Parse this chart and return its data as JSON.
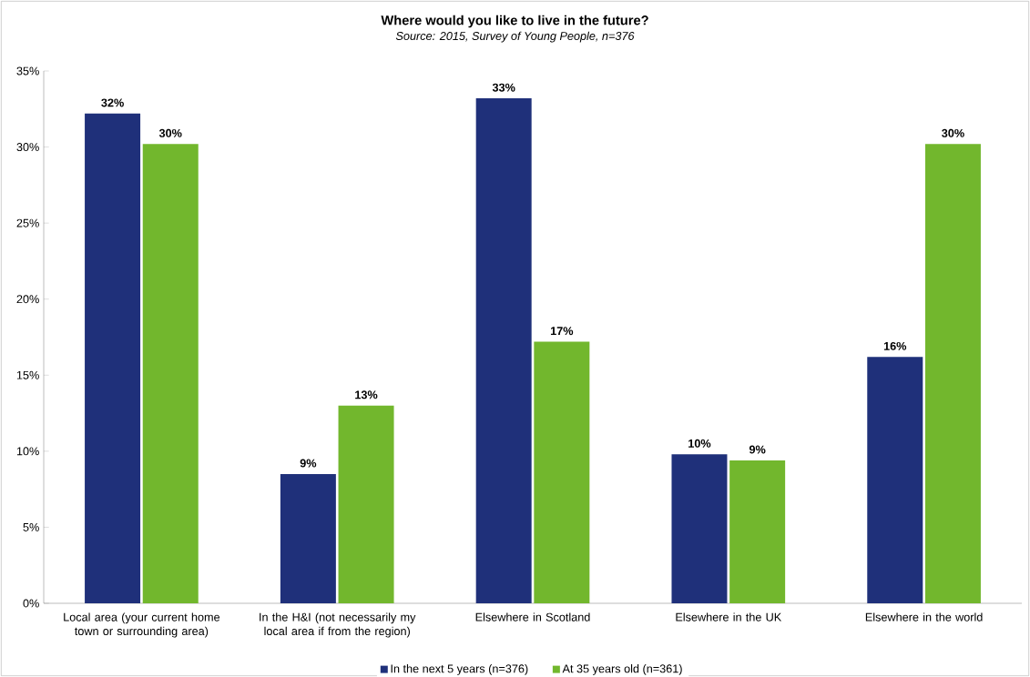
{
  "chart_data": {
    "type": "bar",
    "title": "Where would you like to live in the future?",
    "annotations": [
      "Source: 2015, Survey of Young People, n=376"
    ],
    "categories": [
      "Local area (your current home town or surrounding area)",
      "In the H&I (not necessarily my local area if from the region)",
      "Elsewhere in Scotland",
      "Elsewhere in the UK",
      "Elsewhere in the world"
    ],
    "series": [
      {
        "name": "In the next 5 years (n=376)",
        "color": "#1f307a",
        "values": [
          32.2,
          8.5,
          33.2,
          9.8,
          16.2
        ],
        "value_labels": [
          "32%",
          "9%",
          "33%",
          "10%",
          "16%"
        ]
      },
      {
        "name": "At 35 years old (n=361)",
        "color": "#72b72d",
        "values": [
          30.2,
          13.0,
          17.2,
          9.4,
          30.2
        ],
        "value_labels": [
          "30%",
          "13%",
          "17%",
          "9%",
          "30%"
        ]
      }
    ],
    "ylim": [
      0,
      35
    ],
    "yticks": [
      {
        "value": 0,
        "label": "0%"
      },
      {
        "value": 5,
        "label": "5%"
      },
      {
        "value": 10,
        "label": "10%"
      },
      {
        "value": 15,
        "label": "15%"
      },
      {
        "value": 20,
        "label": "20%"
      },
      {
        "value": 25,
        "label": "25%"
      },
      {
        "value": 30,
        "label": "30%"
      },
      {
        "value": 35,
        "label": "35%"
      }
    ],
    "legend": "bottom"
  }
}
